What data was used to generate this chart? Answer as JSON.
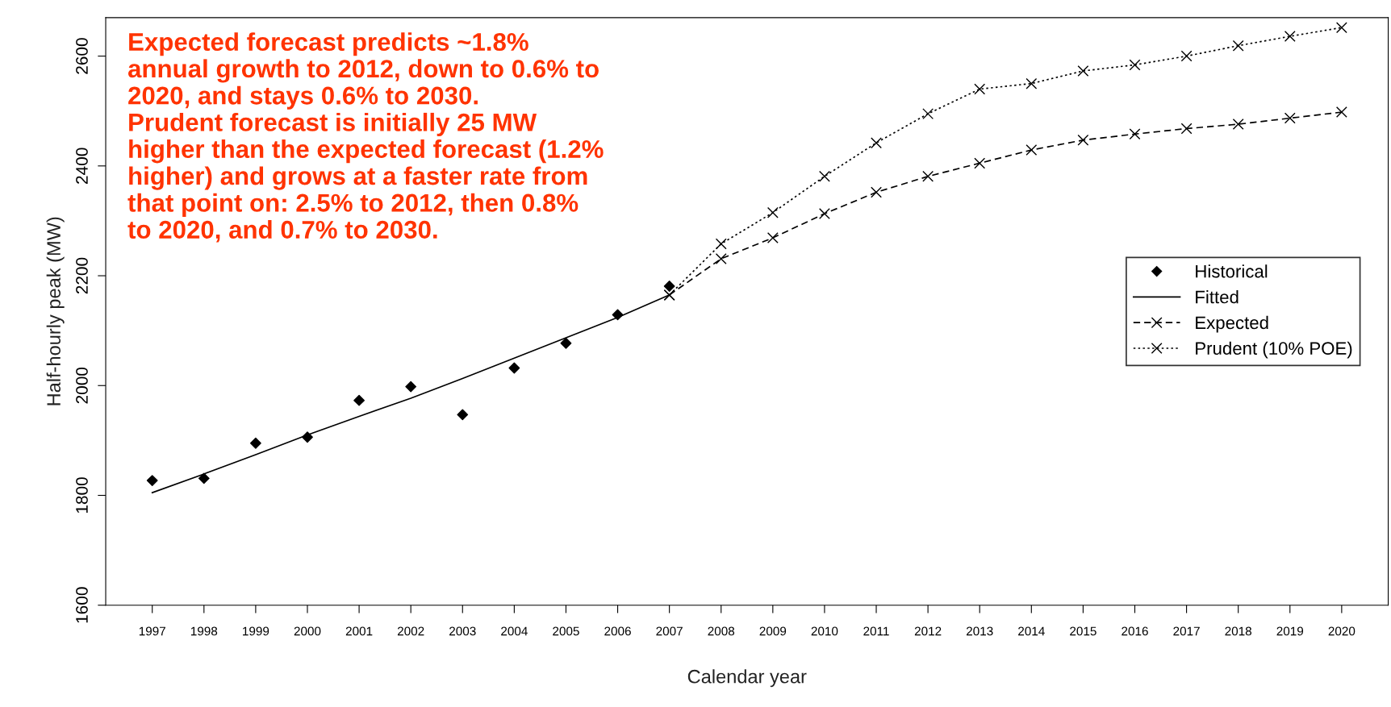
{
  "chart_data": {
    "type": "line",
    "xlabel": "Calendar year",
    "ylabel": "Half-hourly peak (MW)",
    "x": [
      1997,
      1998,
      1999,
      2000,
      2001,
      2002,
      2003,
      2004,
      2005,
      2006,
      2007
    ],
    "xlim": [
      1996.1,
      2020.9
    ],
    "xticks": [
      1997,
      1998,
      1999,
      2000,
      2001,
      2002,
      2003,
      2004,
      2005,
      2006,
      2007,
      2008,
      2009,
      2010,
      2011,
      2012,
      2013,
      2014,
      2015,
      2016,
      2017,
      2018,
      2019,
      2020
    ],
    "ylim": [
      1600,
      2670
    ],
    "yticks": [
      1600,
      1800,
      2000,
      2200,
      2400,
      2600
    ],
    "grid": false,
    "legend": "right",
    "series": [
      {
        "name": "Historical",
        "type": "scatter",
        "marker": "diamond",
        "color": "#000000",
        "values": [
          1827,
          1831,
          1895,
          1906,
          1973,
          1998,
          1947,
          2032,
          2077,
          2129,
          2181
        ]
      },
      {
        "name": "Fitted",
        "marker": "none",
        "line_style": "solid",
        "color": "#000000",
        "values": [
          1805,
          1839,
          1874,
          1910,
          1944,
          1977,
          2013,
          2050,
          2087,
          2124,
          2165
        ]
      },
      {
        "name": "Expected",
        "marker": "cross",
        "line_style": "dashed",
        "color": "#000000",
        "x": [
          2007,
          2008,
          2009,
          2010,
          2011,
          2012,
          2013,
          2014,
          2015,
          2016,
          2017,
          2018,
          2019,
          2020
        ],
        "values": [
          2165,
          2231,
          2269,
          2313,
          2352,
          2381,
          2405,
          2429,
          2447,
          2458,
          2468,
          2476,
          2487,
          2498
        ]
      },
      {
        "name": "Prudent (10% POE)",
        "marker": "cross",
        "line_style": "dotted",
        "color": "#000000",
        "x": [
          2007,
          2008,
          2009,
          2010,
          2011,
          2012,
          2013,
          2014,
          2015,
          2016,
          2017,
          2018,
          2019,
          2020
        ],
        "values": [
          2165,
          2258,
          2315,
          2381,
          2442,
          2495,
          2540,
          2550,
          2573,
          2584,
          2600,
          2619,
          2636,
          2652
        ]
      }
    ],
    "annotations": [
      "Expected forecast predicts ~1.8%\nannual growth to 2012, down to 0.6% to\n2020, and stays 0.6% to 2030.\nPrudent forecast is initially 25 MW\nhigher than the expected forecast (1.2%\nhigher) and grows at a faster rate from\nthat point on: 2.5% to 2012, then 0.8%\nto 2020, and 0.7% to 2030."
    ]
  }
}
